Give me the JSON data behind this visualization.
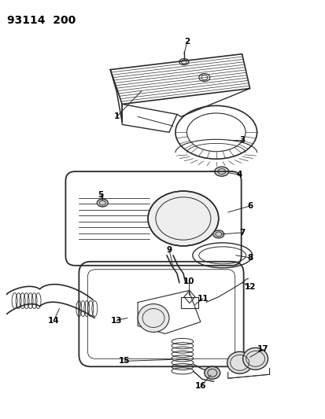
{
  "title": "93114  200",
  "bg_color": "#ffffff",
  "lc": "#2a2a2a",
  "fig_width": 4.14,
  "fig_height": 5.33,
  "dpi": 100
}
